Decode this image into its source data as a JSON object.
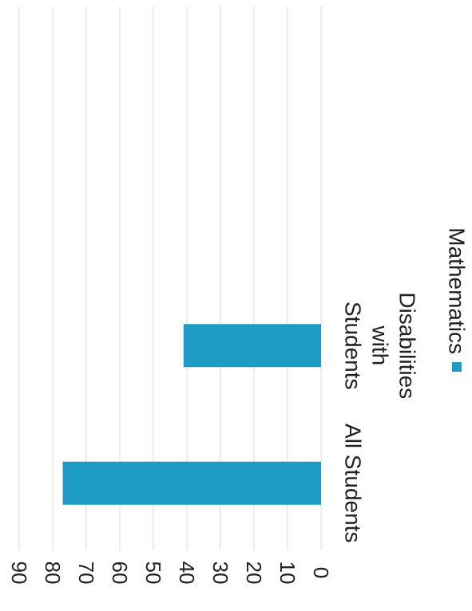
{
  "chart_data": {
    "type": "bar",
    "orientation": "horizontal",
    "rotated": "90deg-clockwise",
    "categories": [
      "All Students",
      "Students with Disabilities"
    ],
    "category_lines": [
      [
        "All Students"
      ],
      [
        "Students",
        "with",
        "Disabilities"
      ]
    ],
    "series": [
      {
        "name": "Mathematics",
        "values": [
          77,
          41
        ],
        "color": "#1f9cc6"
      }
    ],
    "ylim": [
      0,
      90
    ],
    "ticks": [
      0,
      10,
      20,
      30,
      40,
      50,
      60,
      70,
      80,
      90
    ],
    "grid": true,
    "legend_position": "bottom"
  }
}
